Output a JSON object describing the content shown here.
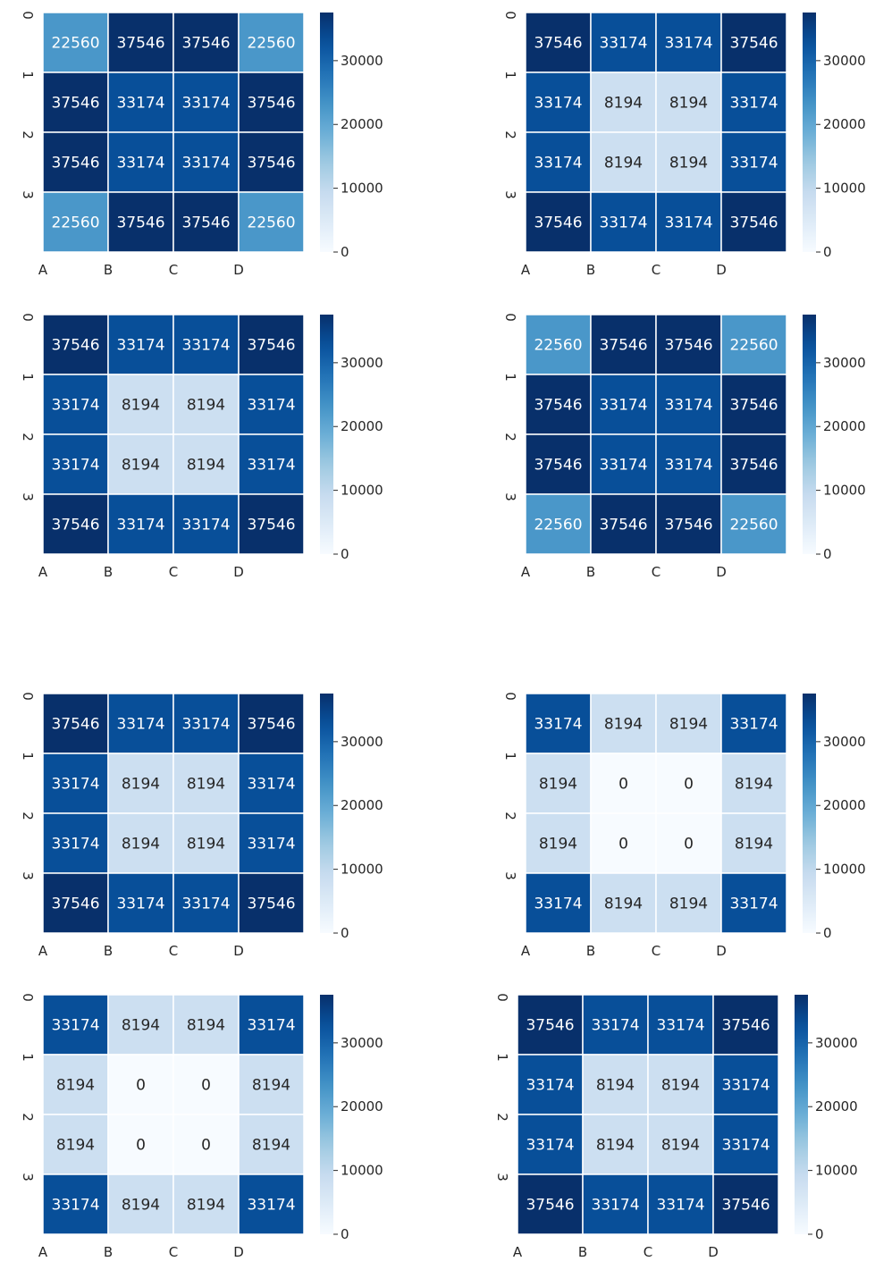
{
  "charts": [
    {
      "chart_data": {
        "type": "heatmap",
        "x_tick_labels": [
          "A",
          "B",
          "C",
          "D"
        ],
        "y_tick_labels": [
          "0",
          "1",
          "2",
          "3"
        ],
        "values": [
          [
            22560,
            37546,
            37546,
            22560
          ],
          [
            37546,
            33174,
            33174,
            37546
          ],
          [
            37546,
            33174,
            33174,
            37546
          ],
          [
            22560,
            37546,
            37546,
            22560
          ]
        ],
        "colorbar": {
          "range": [
            0,
            37546
          ],
          "ticks": [
            0,
            10000,
            20000,
            30000
          ],
          "colormap": "Blues"
        }
      }
    },
    {
      "chart_data": {
        "type": "heatmap",
        "x_tick_labels": [
          "A",
          "B",
          "C",
          "D"
        ],
        "y_tick_labels": [
          "0",
          "1",
          "2",
          "3"
        ],
        "values": [
          [
            37546,
            33174,
            33174,
            37546
          ],
          [
            33174,
            8194,
            8194,
            33174
          ],
          [
            33174,
            8194,
            8194,
            33174
          ],
          [
            37546,
            33174,
            33174,
            37546
          ]
        ],
        "colorbar": {
          "range": [
            0,
            37546
          ],
          "ticks": [
            0,
            10000,
            20000,
            30000
          ],
          "colormap": "Blues"
        }
      }
    },
    {
      "chart_data": {
        "type": "heatmap",
        "x_tick_labels": [
          "A",
          "B",
          "C",
          "D"
        ],
        "y_tick_labels": [
          "0",
          "1",
          "2",
          "3"
        ],
        "values": [
          [
            37546,
            33174,
            33174,
            37546
          ],
          [
            33174,
            8194,
            8194,
            33174
          ],
          [
            33174,
            8194,
            8194,
            33174
          ],
          [
            37546,
            33174,
            33174,
            37546
          ]
        ],
        "colorbar": {
          "range": [
            0,
            37546
          ],
          "ticks": [
            0,
            10000,
            20000,
            30000
          ],
          "colormap": "Blues"
        }
      }
    },
    {
      "chart_data": {
        "type": "heatmap",
        "x_tick_labels": [
          "A",
          "B",
          "C",
          "D"
        ],
        "y_tick_labels": [
          "0",
          "1",
          "2",
          "3"
        ],
        "values": [
          [
            22560,
            37546,
            37546,
            22560
          ],
          [
            37546,
            33174,
            33174,
            37546
          ],
          [
            37546,
            33174,
            33174,
            37546
          ],
          [
            22560,
            37546,
            37546,
            22560
          ]
        ],
        "colorbar": {
          "range": [
            0,
            37546
          ],
          "ticks": [
            0,
            10000,
            20000,
            30000
          ],
          "colormap": "Blues"
        }
      }
    },
    {
      "chart_data": {
        "type": "heatmap",
        "x_tick_labels": [
          "A",
          "B",
          "C",
          "D"
        ],
        "y_tick_labels": [
          "0",
          "1",
          "2",
          "3"
        ],
        "values": [
          [
            37546,
            33174,
            33174,
            37546
          ],
          [
            33174,
            8194,
            8194,
            33174
          ],
          [
            33174,
            8194,
            8194,
            33174
          ],
          [
            37546,
            33174,
            33174,
            37546
          ]
        ],
        "colorbar": {
          "range": [
            0,
            37546
          ],
          "ticks": [
            0,
            10000,
            20000,
            30000
          ],
          "colormap": "Blues"
        }
      }
    },
    {
      "chart_data": {
        "type": "heatmap",
        "x_tick_labels": [
          "A",
          "B",
          "C",
          "D"
        ],
        "y_tick_labels": [
          "0",
          "1",
          "2",
          "3"
        ],
        "values": [
          [
            33174,
            8194,
            8194,
            33174
          ],
          [
            8194,
            0,
            0,
            8194
          ],
          [
            8194,
            0,
            0,
            8194
          ],
          [
            33174,
            8194,
            8194,
            33174
          ]
        ],
        "colorbar": {
          "range": [
            0,
            37546
          ],
          "ticks": [
            0,
            10000,
            20000,
            30000
          ],
          "colormap": "Blues"
        }
      }
    },
    {
      "chart_data": {
        "type": "heatmap",
        "x_tick_labels": [
          "A",
          "B",
          "C",
          "D"
        ],
        "y_tick_labels": [
          "0",
          "1",
          "2",
          "3"
        ],
        "values": [
          [
            33174,
            8194,
            8194,
            33174
          ],
          [
            8194,
            0,
            0,
            8194
          ],
          [
            8194,
            0,
            0,
            8194
          ],
          [
            33174,
            8194,
            8194,
            33174
          ]
        ],
        "colorbar": {
          "range": [
            0,
            37546
          ],
          "ticks": [
            0,
            10000,
            20000,
            30000
          ],
          "colormap": "Blues"
        }
      }
    },
    {
      "chart_data": {
        "type": "heatmap",
        "x_tick_labels": [
          "A",
          "B",
          "C",
          "D"
        ],
        "y_tick_labels": [
          "0",
          "1",
          "2",
          "3"
        ],
        "values": [
          [
            37546,
            33174,
            33174,
            37546
          ],
          [
            33174,
            8194,
            8194,
            33174
          ],
          [
            33174,
            8194,
            8194,
            33174
          ],
          [
            37546,
            33174,
            33174,
            37546
          ]
        ],
        "colorbar": {
          "range": [
            0,
            37546
          ],
          "ticks": [
            0,
            10000,
            20000,
            30000
          ],
          "colormap": "Blues"
        }
      }
    }
  ]
}
